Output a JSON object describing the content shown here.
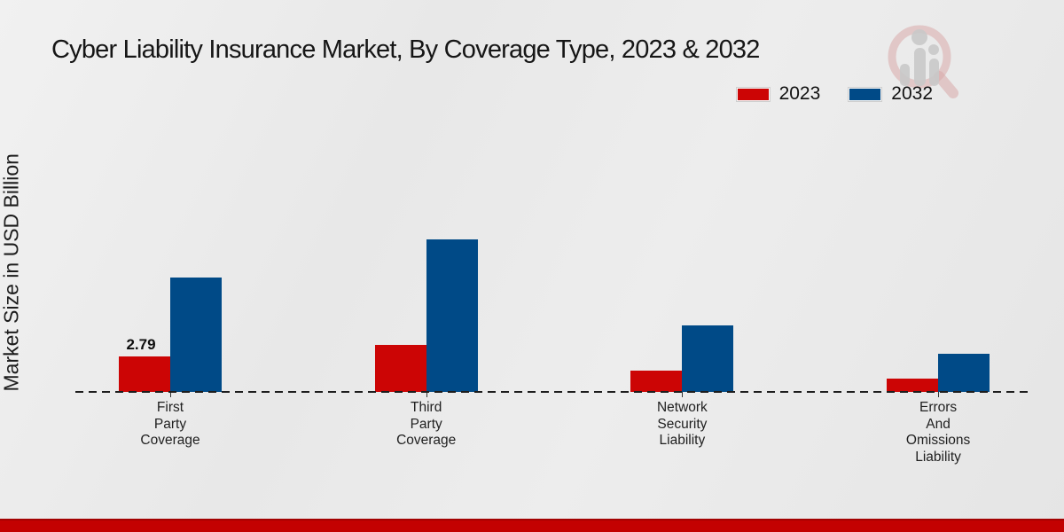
{
  "title": "Cyber Liability Insurance Market, By Coverage Type, 2023 & 2032",
  "ylabel": "Market Size in USD Billion",
  "colors": {
    "bar_2023_red": "#cc0505",
    "bar_2032_blue": "#004a87",
    "footer_red": "#c30101",
    "axis_dash": "#1d1d1d",
    "watermark_red": "#d8a9a9",
    "watermark_grey": "#c9c9c9"
  },
  "legend": {
    "items": [
      {
        "label": "2023",
        "color": "#cc0505"
      },
      {
        "label": "2032",
        "color": "#004a87"
      }
    ]
  },
  "chart_data": {
    "type": "bar",
    "title": "Cyber Liability Insurance Market, By Coverage Type, 2023 & 2032",
    "xlabel": "",
    "ylabel": "Market Size in USD Billion",
    "ylim": [
      0,
      13
    ],
    "grid": false,
    "legend_position": "top-right",
    "categories": [
      [
        "First",
        "Party",
        "Coverage"
      ],
      [
        "Third",
        "Party",
        "Coverage"
      ],
      [
        "Network",
        "Security",
        "Liability"
      ],
      [
        "Errors",
        "And",
        "Omissions",
        "Liability"
      ]
    ],
    "series": [
      {
        "name": "2023",
        "color": "#cc0505",
        "values": [
          2.79,
          3.74,
          1.67,
          1.05
        ]
      },
      {
        "name": "2032",
        "color": "#004a87",
        "values": [
          9.0,
          12.06,
          5.23,
          3.0
        ]
      }
    ],
    "visible_value_labels": [
      {
        "series": "2023",
        "category_index": 0,
        "text": "2.79"
      }
    ]
  }
}
